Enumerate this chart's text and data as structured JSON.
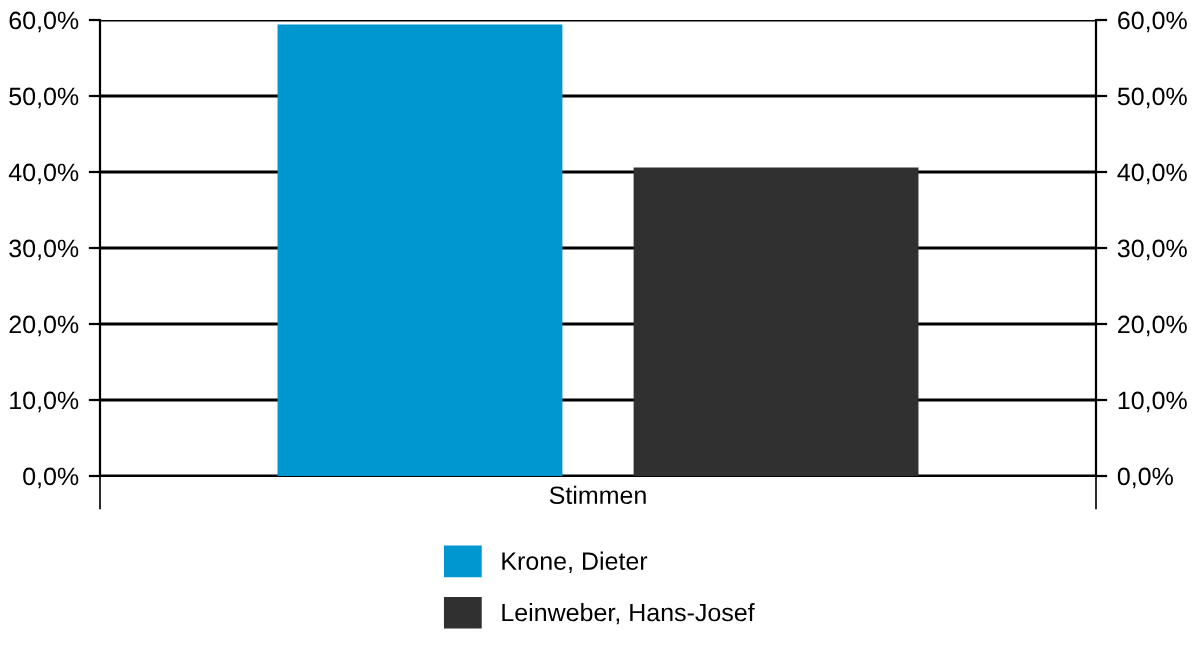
{
  "chart_data": {
    "type": "bar",
    "categories": [
      "Stimmen"
    ],
    "series": [
      {
        "name": "Krone, Dieter",
        "color": "#0096d0",
        "values": [
          59.4
        ]
      },
      {
        "name": "Leinweber, Hans-Josef",
        "color": "#303030",
        "values": [
          40.6
        ]
      }
    ],
    "ylim": [
      0,
      60
    ],
    "yticks": [
      {
        "value": 0,
        "label": "0,0%"
      },
      {
        "value": 10,
        "label": "10,0%"
      },
      {
        "value": 20,
        "label": "20,0%"
      },
      {
        "value": 30,
        "label": "30,0%"
      },
      {
        "value": 40,
        "label": "40,0%"
      },
      {
        "value": 50,
        "label": "50,0%"
      },
      {
        "value": 60,
        "label": "60,0%"
      }
    ],
    "grid": "y",
    "legend": "bottom"
  }
}
